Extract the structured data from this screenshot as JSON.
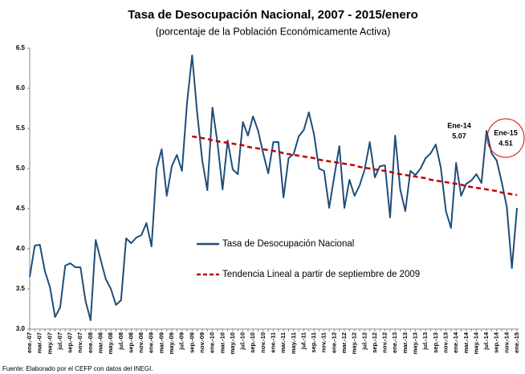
{
  "chart_data": {
    "type": "line",
    "title": "Tasa de Desocupación Nacional, 2007 - 2015/enero",
    "subtitle": "(porcentaje de la Población Económicamente Activa)",
    "source": "Fuente: Elaborado por el CEFP con datos del INEGI.",
    "categories": [
      "ene.-07",
      null,
      "mar.-07",
      null,
      "may.-07",
      null,
      "jul.-07",
      null,
      "sep.-07",
      null,
      "nov.-07",
      null,
      "ene.-08",
      null,
      "mar.-08",
      null,
      "may.-08",
      null,
      "jul.-08",
      null,
      "sep.-08",
      null,
      "nov.-08",
      null,
      "ene.-09",
      null,
      "mar.-09",
      null,
      "may.-09",
      null,
      "jul.-09",
      null,
      "sep.-09",
      null,
      "nov.-09",
      null,
      "ene.-10",
      null,
      "mar.-10",
      null,
      "may.-10",
      null,
      "jul.-10",
      null,
      "sep.-10",
      null,
      "nov.-10",
      null,
      "ene.-11",
      null,
      "mar.-11",
      null,
      "may.-11",
      null,
      "jul.-11",
      null,
      "sep.-11",
      null,
      "nov.-11",
      null,
      "ene.-12",
      null,
      "mar.-12",
      null,
      "may.-12",
      null,
      "jul.-12",
      null,
      "sep.-12",
      null,
      "nov.-12",
      null,
      "ene.-13",
      null,
      "mar.-13",
      null,
      "may.-13",
      null,
      "jul.-13",
      null,
      "sep.-13",
      null,
      "nov.-13",
      null,
      "ene.-14",
      null,
      "mar.-14",
      null,
      "may.-14",
      null,
      "jul.-14",
      null,
      "sep.-14",
      null,
      "nov.-14",
      null,
      "ene.-15"
    ],
    "series": [
      {
        "name": "Tasa de Desocupación Nacional",
        "color": "#1f4e79",
        "style": "solid",
        "values": [
          3.65,
          4.04,
          4.05,
          3.72,
          3.52,
          3.15,
          3.27,
          3.79,
          3.82,
          3.77,
          3.77,
          3.35,
          3.11,
          4.11,
          3.86,
          3.62,
          3.5,
          3.3,
          3.36,
          4.13,
          4.07,
          4.14,
          4.17,
          4.32,
          4.03,
          5.0,
          5.24,
          4.66,
          5.03,
          5.17,
          4.97,
          5.82,
          6.41,
          5.69,
          5.1,
          4.73,
          5.76,
          5.32,
          4.74,
          5.35,
          4.99,
          4.93,
          5.58,
          5.41,
          5.65,
          5.47,
          5.19,
          4.94,
          5.33,
          5.33,
          4.64,
          5.13,
          5.18,
          5.4,
          5.48,
          5.7,
          5.43,
          5.0,
          4.97,
          4.51,
          4.9,
          5.28,
          4.51,
          4.86,
          4.66,
          4.79,
          4.99,
          5.33,
          4.89,
          5.03,
          5.04,
          4.39,
          5.41,
          4.74,
          4.47,
          4.97,
          4.92,
          5.0,
          5.13,
          5.19,
          5.3,
          5.01,
          4.47,
          4.26,
          5.07,
          4.66,
          4.81,
          4.85,
          4.93,
          4.82,
          5.47,
          5.19,
          5.1,
          4.83,
          4.52,
          3.76,
          4.51
        ]
      },
      {
        "name": "Tendencia Lineal a partir de septiembre de 2009",
        "color": "#c00000",
        "style": "dashed",
        "values": [
          null,
          null,
          null,
          null,
          null,
          null,
          null,
          null,
          null,
          null,
          null,
          null,
          null,
          null,
          null,
          null,
          null,
          null,
          null,
          null,
          null,
          null,
          null,
          null,
          null,
          null,
          null,
          null,
          null,
          null,
          null,
          null,
          5.4,
          5.39,
          5.38,
          5.37,
          5.35,
          5.34,
          5.33,
          5.32,
          5.31,
          5.3,
          5.29,
          5.27,
          5.26,
          5.25,
          5.24,
          5.23,
          5.22,
          5.21,
          5.19,
          5.18,
          5.17,
          5.16,
          5.15,
          5.14,
          5.13,
          5.11,
          5.1,
          5.09,
          5.08,
          5.07,
          5.06,
          5.05,
          5.04,
          5.02,
          5.01,
          5.0,
          4.99,
          4.98,
          4.97,
          4.96,
          4.94,
          4.93,
          4.92,
          4.91,
          4.9,
          4.89,
          4.88,
          4.86,
          4.85,
          4.84,
          4.83,
          4.82,
          4.81,
          4.8,
          4.78,
          4.77,
          4.76,
          4.75,
          4.74,
          4.73,
          4.72,
          4.7,
          4.69,
          4.68,
          4.67
        ]
      }
    ],
    "annotations": [
      {
        "label": "Ene-14",
        "value": 5.07
      },
      {
        "label": "Ene-15",
        "value": 4.51
      }
    ],
    "ylim": [
      3.0,
      6.5
    ],
    "yticks": [
      {
        "value": 3,
        "label": "3.0"
      },
      3.5,
      {
        "value": 4,
        "label": "4.0"
      },
      4.5,
      {
        "value": 5,
        "label": "5.0"
      },
      5.5,
      {
        "value": 6,
        "label": "6.0"
      },
      6.5
    ],
    "grid": false,
    "legend": "center"
  }
}
